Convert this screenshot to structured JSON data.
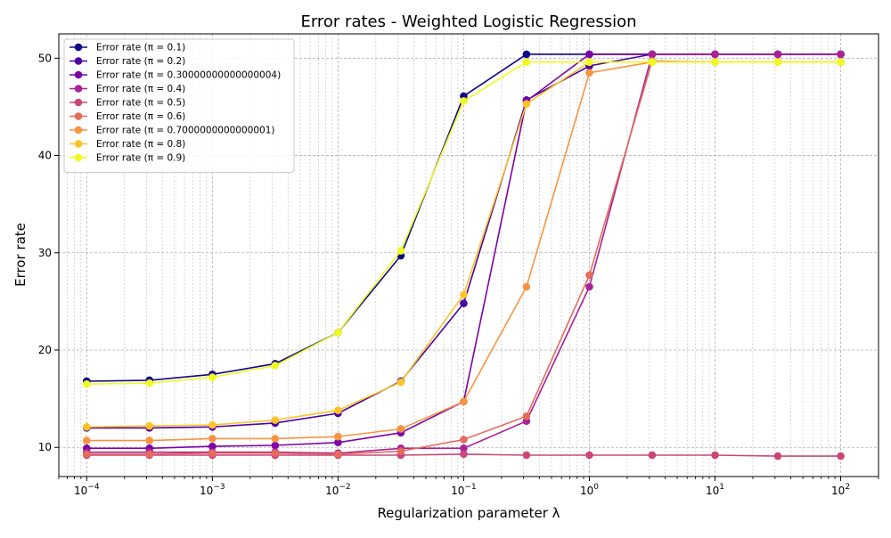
{
  "chart_data": {
    "type": "line",
    "title": "Error rates - Weighted Logistic Regression",
    "xlabel": "Regularization parameter λ",
    "ylabel": "Error rate",
    "xscale": "log",
    "xlim": [
      6e-05,
      200
    ],
    "ylim": [
      7,
      52.5
    ],
    "x_ticks": [
      {
        "value": 0.0001,
        "base": "10",
        "exp": "−4"
      },
      {
        "value": 0.001,
        "base": "10",
        "exp": "−3"
      },
      {
        "value": 0.01,
        "base": "10",
        "exp": "−2"
      },
      {
        "value": 0.1,
        "base": "10",
        "exp": "−1"
      },
      {
        "value": 1,
        "base": "10",
        "exp": "0"
      },
      {
        "value": 10,
        "base": "10",
        "exp": "1"
      },
      {
        "value": 100,
        "base": "10",
        "exp": "2"
      }
    ],
    "y_ticks": [
      10,
      20,
      30,
      40,
      50
    ],
    "grid": "both (major and minor), dashed",
    "legend_position": "top-left",
    "x": [
      0.0001,
      0.000316,
      0.001,
      0.00316,
      0.01,
      0.0316,
      0.1,
      0.316,
      1,
      3.16,
      10,
      31.6,
      100
    ],
    "series": [
      {
        "name": "Error rate (π = 0.1)",
        "color": "#0d0887",
        "values": [
          16.8,
          16.9,
          17.5,
          18.6,
          21.8,
          29.7,
          46.1,
          50.4,
          50.4,
          50.4,
          50.4,
          50.4,
          50.4
        ]
      },
      {
        "name": "Error rate (π = 0.2)",
        "color": "#4b03a1",
        "values": [
          12.0,
          12.0,
          12.1,
          12.5,
          13.5,
          16.8,
          24.8,
          45.7,
          49.2,
          50.4,
          50.4,
          50.4,
          50.4
        ]
      },
      {
        "name": "Error rate (π = 0.30000000000000004)",
        "color": "#7d03a8",
        "values": [
          9.9,
          9.9,
          10.1,
          10.2,
          10.5,
          11.5,
          14.7,
          45.6,
          50.4,
          50.4,
          50.4,
          50.4,
          50.4
        ]
      },
      {
        "name": "Error rate (π = 0.4)",
        "color": "#a82296",
        "values": [
          9.5,
          9.5,
          9.5,
          9.5,
          9.4,
          9.9,
          9.9,
          12.7,
          26.5,
          50.4,
          50.4,
          50.4,
          50.4
        ]
      },
      {
        "name": "Error rate (π = 0.5)",
        "color": "#cb4679",
        "values": [
          9.2,
          9.2,
          9.2,
          9.2,
          9.2,
          9.2,
          9.3,
          9.2,
          9.2,
          9.2,
          9.2,
          9.1,
          9.1
        ]
      },
      {
        "name": "Error rate (π = 0.6)",
        "color": "#e56b5d",
        "values": [
          9.3,
          9.3,
          9.4,
          9.4,
          9.3,
          9.6,
          10.8,
          13.2,
          27.7,
          49.7,
          49.6,
          49.6,
          49.6
        ]
      },
      {
        "name": "Error rate (π = 0.7000000000000001)",
        "color": "#f89441",
        "values": [
          10.7,
          10.7,
          10.9,
          10.9,
          11.1,
          11.9,
          14.7,
          26.5,
          48.5,
          49.6,
          49.6,
          49.6,
          49.6
        ]
      },
      {
        "name": "Error rate (π = 0.8)",
        "color": "#fdc328",
        "values": [
          12.1,
          12.2,
          12.3,
          12.8,
          13.8,
          16.7,
          25.7,
          45.3,
          49.6,
          49.6,
          49.6,
          49.6,
          49.6
        ]
      },
      {
        "name": "Error rate (π = 0.9)",
        "color": "#f0f921",
        "values": [
          16.5,
          16.6,
          17.2,
          18.4,
          21.8,
          30.2,
          45.6,
          49.6,
          49.6,
          49.6,
          49.6,
          49.6,
          49.6
        ]
      }
    ]
  }
}
